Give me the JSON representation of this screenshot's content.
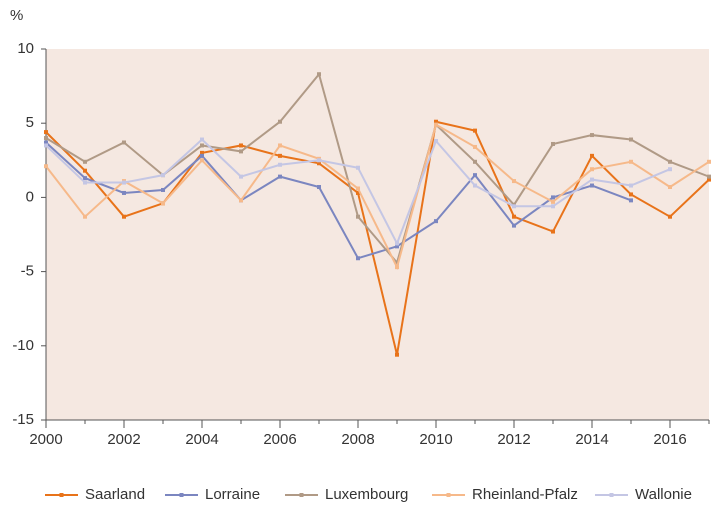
{
  "chart_data": {
    "type": "line",
    "y_label": "%",
    "x": [
      2000,
      2001,
      2002,
      2003,
      2004,
      2005,
      2006,
      2007,
      2008,
      2009,
      2010,
      2011,
      2012,
      2013,
      2014,
      2015,
      2016,
      2017
    ],
    "xlim": [
      2000,
      2017
    ],
    "xticks": [
      2000,
      2002,
      2004,
      2006,
      2008,
      2010,
      2012,
      2014,
      2016
    ],
    "ylim": [
      -15,
      10
    ],
    "yticks": [
      -15,
      -10,
      -5,
      0,
      5,
      10
    ],
    "legend": "bottom",
    "series": [
      {
        "name": "Saarland",
        "color": "#e8731a",
        "values": [
          4.4,
          1.8,
          -1.3,
          -0.4,
          3.0,
          3.5,
          2.8,
          2.3,
          0.3,
          -10.6,
          5.1,
          4.5,
          -1.3,
          -2.3,
          2.8,
          0.2,
          -1.3,
          1.2
        ]
      },
      {
        "name": "Lorraine",
        "color": "#7b86c0",
        "values": [
          3.7,
          1.3,
          0.3,
          0.5,
          2.8,
          -0.2,
          1.4,
          0.7,
          -4.1,
          -3.3,
          -1.6,
          1.5,
          -1.9,
          0.0,
          0.8,
          -0.2,
          null,
          null
        ]
      },
      {
        "name": "Luxembourg",
        "color": "#b09a86",
        "values": [
          4.0,
          2.4,
          3.7,
          1.5,
          3.5,
          3.1,
          5.1,
          8.3,
          -1.3,
          -4.4,
          4.9,
          2.4,
          -0.5,
          3.6,
          4.2,
          3.9,
          2.4,
          1.4
        ]
      },
      {
        "name": "Rheinland-Pfalz",
        "color": "#f6b98a",
        "values": [
          2.1,
          -1.3,
          1.1,
          -0.4,
          2.5,
          -0.2,
          3.5,
          2.6,
          0.6,
          -4.7,
          4.9,
          3.4,
          1.1,
          -0.3,
          1.9,
          2.4,
          0.7,
          2.4
        ]
      },
      {
        "name": "Wallonie",
        "color": "#c4c6e4",
        "values": [
          3.5,
          1.0,
          1.0,
          1.5,
          3.9,
          1.4,
          2.2,
          2.5,
          2.0,
          -3.1,
          3.8,
          0.8,
          -0.6,
          -0.6,
          1.2,
          0.8,
          1.9,
          null
        ]
      }
    ]
  }
}
